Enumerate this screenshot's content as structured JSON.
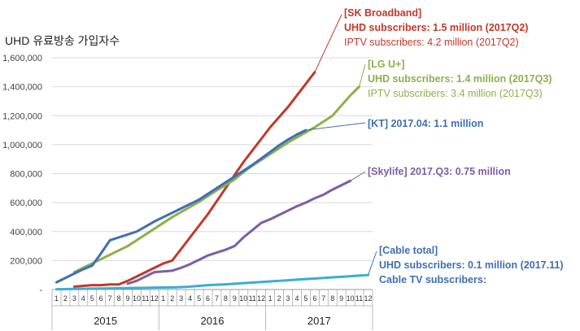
{
  "chart_title": "UHD 유료방송 가입자수",
  "chart_data": {
    "type": "line",
    "title": "UHD 유료방송 가입자수",
    "xlabel": "",
    "ylabel": "",
    "ylim": [
      0,
      1600000
    ],
    "yticks": [
      "-",
      "200,000",
      "400,000",
      "600,000",
      "800,000",
      "1,000,000",
      "1,200,000",
      "1,400,000",
      "1,600,000"
    ],
    "grid": true,
    "x_months": [
      "1",
      "2",
      "3",
      "4",
      "5",
      "6",
      "7",
      "8",
      "9",
      "10",
      "11",
      "12",
      "1",
      "2",
      "3",
      "4",
      "5",
      "6",
      "7",
      "8",
      "9",
      "10",
      "11",
      "12",
      "1",
      "2",
      "3",
      "4",
      "5",
      "6",
      "7",
      "8",
      "9",
      "10",
      "11",
      "12"
    ],
    "x_years": [
      "2015",
      "2016",
      "2017"
    ],
    "series": [
      {
        "id": "sk",
        "color": "#c0392b",
        "start": 3,
        "values": [
          20000,
          25000,
          30000,
          30000,
          35000,
          35000,
          60000,
          90000,
          120000,
          150000,
          180000,
          200000,
          280000,
          360000,
          440000,
          520000,
          610000,
          700000,
          790000,
          880000,
          960000,
          1040000,
          1120000,
          1190000,
          1260000,
          1340000,
          1420000,
          1500000
        ]
      },
      {
        "id": "lg",
        "color": "#8cb04a",
        "start": 3,
        "values": [
          120000,
          150000,
          180000,
          210000,
          240000,
          270000,
          300000,
          340000,
          380000,
          420000,
          460000,
          500000,
          535000,
          570000,
          605000,
          645000,
          685000,
          720000,
          760000,
          810000,
          855000,
          895000,
          935000,
          975000,
          1015000,
          1050000,
          1085000,
          1120000,
          1160000,
          1200000,
          1270000,
          1340000,
          1400000
        ]
      },
      {
        "id": "kt",
        "color": "#3f6fb5",
        "start": 1,
        "values": [
          50000,
          80000,
          110000,
          140000,
          165000,
          250000,
          340000,
          360000,
          380000,
          400000,
          435000,
          470000,
          500000,
          530000,
          560000,
          590000,
          620000,
          660000,
          700000,
          740000,
          780000,
          820000,
          860000,
          905000,
          950000,
          995000,
          1035000,
          1070000,
          1100000
        ]
      },
      {
        "id": "skylife",
        "color": "#7b5ea7",
        "start": 9,
        "values": [
          40000,
          60000,
          90000,
          120000,
          125000,
          130000,
          150000,
          175000,
          205000,
          235000,
          255000,
          275000,
          300000,
          360000,
          410000,
          460000,
          485000,
          515000,
          545000,
          575000,
          600000,
          630000,
          655000,
          690000,
          720000,
          750000
        ]
      },
      {
        "id": "cable",
        "color": "#3aaed0",
        "start": 1,
        "values": [
          2000,
          3000,
          4000,
          5000,
          6000,
          7000,
          8000,
          9000,
          10000,
          11000,
          12000,
          13000,
          14000,
          15000,
          17000,
          20000,
          25000,
          30000,
          33000,
          36000,
          40000,
          44000,
          48000,
          52000,
          56000,
          60000,
          64000,
          68000,
          72000,
          76000,
          80000,
          84000,
          88000,
          92000,
          96000,
          100000
        ]
      }
    ]
  },
  "annotations": {
    "sk": {
      "color": "#c0392b",
      "line1": "[SK Broadband]",
      "line2": "UHD subscribers: 1.5 million (2017Q2)",
      "line3": "IPTV subscribers: 4.2 million (2017Q2)"
    },
    "lg": {
      "color": "#8cb04a",
      "line1": "[LG U+]",
      "line2": "UHD subscribers: 1.4 million (2017Q3)",
      "line3": "IPTV subscribers: 3.4 million (2017Q3)"
    },
    "kt": {
      "color": "#3f6fb5",
      "line1": "[KT] 2017.04: 1.1 million"
    },
    "skylife": {
      "color": "#7b5ea7",
      "line1": "[Skylife] 2017.Q3: 0.75 million"
    },
    "cable": {
      "color": "#3f6fb5",
      "line1": "[Cable total]",
      "line2": "UHD subscribers: 0.1 million (2017.11)",
      "line3": "Cable TV subscribers:"
    }
  }
}
